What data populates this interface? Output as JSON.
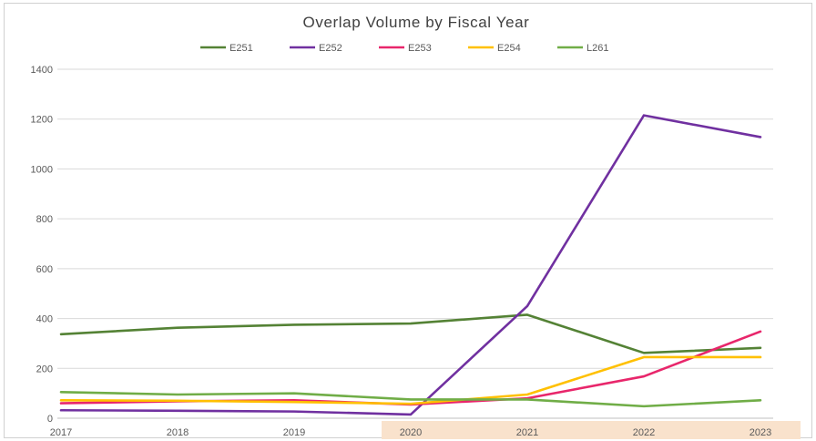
{
  "chart_data": {
    "type": "line",
    "title": "Overlap Volume by Fiscal Year",
    "xlabel": "",
    "ylabel": "",
    "x": [
      "2017",
      "2018",
      "2019",
      "2020",
      "2021",
      "2022",
      "2023"
    ],
    "highlighted_x": [
      "2020",
      "2021",
      "2022",
      "2023"
    ],
    "highlight_color": "#f9e2cc",
    "ylim": [
      0,
      1400
    ],
    "yticks": [
      "0",
      "200",
      "400",
      "600",
      "800",
      "1000",
      "1200",
      "1400"
    ],
    "grid": true,
    "legend_position": "top",
    "series": [
      {
        "name": "E251",
        "color": "#548235",
        "values": [
          337,
          363,
          375,
          380,
          415,
          262,
          282
        ]
      },
      {
        "name": "E252",
        "color": "#7030a0",
        "values": [
          32,
          30,
          27,
          15,
          450,
          1215,
          1128
        ]
      },
      {
        "name": "E253",
        "color": "#e8266b",
        "values": [
          60,
          68,
          72,
          55,
          80,
          168,
          348
        ]
      },
      {
        "name": "E254",
        "color": "#ffc000",
        "values": [
          72,
          70,
          65,
          58,
          95,
          245,
          245
        ]
      },
      {
        "name": "L261",
        "color": "#70ad47",
        "values": [
          105,
          95,
          100,
          75,
          75,
          48,
          72
        ]
      }
    ]
  }
}
